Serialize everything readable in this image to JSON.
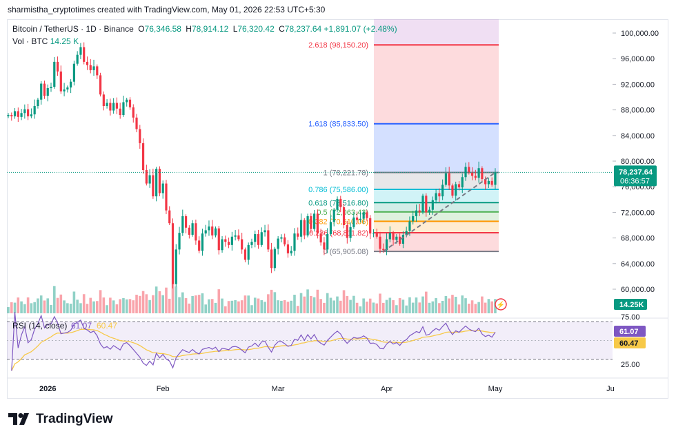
{
  "header": {
    "credit": "sharmistha_cryptotimes created with TradingView.com, May 01, 2026 22:53 UTC+5:30"
  },
  "legend": {
    "symbol": "Bitcoin / TetherUS · 1D · Binance",
    "o_label": "O",
    "o_value": "76,346.58",
    "h_label": "H",
    "h_value": "78,914.12",
    "l_label": "L",
    "l_value": "76,320.42",
    "c_label": "C",
    "c_value": "78,237.64",
    "change": "+1,891.07 (+2.48%)",
    "vol_label": "Vol · BTC",
    "vol_value": "14.25 K"
  },
  "brand": {
    "name": "TradingView"
  },
  "colors": {
    "up": "#089981",
    "down": "#f23645",
    "accent": "#2962ff"
  },
  "chart_data": {
    "type": "candlestick",
    "y_ticks": [
      "100,000.00",
      "96,000.00",
      "92,000.00",
      "88,000.00",
      "84,000.00",
      "80,000.00",
      "76,000.00",
      "72,000.00",
      "68,000.00",
      "64,000.00",
      "60,000.00"
    ],
    "x_ticks": [
      "2026",
      "Feb",
      "Mar",
      "Apr",
      "May",
      "Ju"
    ],
    "last_price": "78,237.64",
    "countdown": "06:36:57",
    "volume_badge": "14.25K",
    "fib_levels": [
      {
        "label": "2.618 (98,150.20)",
        "value": 98150.2,
        "color": "#f23645"
      },
      {
        "label": "1.618 (85,833.50)",
        "value": 85833.5,
        "color": "#2962ff"
      },
      {
        "label": "1 (78,221.78)",
        "value": 78221.78,
        "color": "#787b86"
      },
      {
        "label": "0.786 (75,586.00)",
        "value": 75586.0,
        "color": "#00bcd4"
      },
      {
        "label": "0.618 (73,516.80)",
        "value": 73516.8,
        "color": "#089981"
      },
      {
        "label": "0.5 (72,063.43)",
        "value": 72063.43,
        "color": "#4caf50"
      },
      {
        "label": "0.382 (70,610.06)",
        "value": 70610.06,
        "color": "#ff9800"
      },
      {
        "label": "0.236 (68,811.82)",
        "value": 68811.82,
        "color": "#f23645"
      },
      {
        "label": "0 (65,905.08)",
        "value": 65905.08,
        "color": "#787b86"
      }
    ],
    "rsi": {
      "title": "RSI (14, close)",
      "rsi_value": "61.07",
      "ma_value": "60.47",
      "y_ticks": [
        "75.00",
        "25.00"
      ],
      "band": [
        30,
        70
      ]
    },
    "closes": [
      87200,
      87000,
      87800,
      86900,
      87500,
      88100,
      87000,
      87300,
      88600,
      89600,
      92100,
      90200,
      91400,
      91600,
      95500,
      94000,
      90900,
      91200,
      91500,
      92400,
      95200,
      96600,
      97800,
      95500,
      95000,
      94200,
      94800,
      93400,
      90400,
      88600,
      89100,
      87900,
      89100,
      88200,
      87200,
      89200,
      89600,
      88400,
      86800,
      85000,
      82800,
      78600,
      76500,
      77800,
      74500,
      78800,
      75000,
      76500,
      72300,
      70300,
      60800,
      66200,
      68800,
      71400,
      69600,
      68500,
      70300,
      67600,
      66000,
      68700,
      69200,
      69800,
      68400,
      69500,
      66100,
      67800,
      67400,
      66900,
      68200,
      68400,
      67800,
      66200,
      64600,
      66900,
      67400,
      68600,
      66900,
      68900,
      69200,
      66200,
      63300,
      66300,
      67900,
      68100,
      67000,
      65600,
      66000,
      68700,
      68200,
      70800,
      68400,
      71400,
      69400,
      71800,
      68700,
      67300,
      66200,
      68600,
      70500,
      72400,
      74100,
      72800,
      70000,
      68000,
      69700,
      71200,
      70800,
      71000,
      72000,
      71100,
      68700,
      68800,
      68200,
      66300,
      66100,
      67800,
      68800,
      67700,
      68200,
      67100,
      68500,
      69100,
      70600,
      71400,
      72300,
      72000,
      74600,
      72000,
      72400,
      73900,
      75000,
      74500,
      76300,
      78100,
      76200,
      74600,
      76400,
      75900,
      77500,
      79100,
      78200,
      77700,
      77400,
      78900,
      77200,
      76400,
      76900,
      76300,
      78237
    ]
  }
}
